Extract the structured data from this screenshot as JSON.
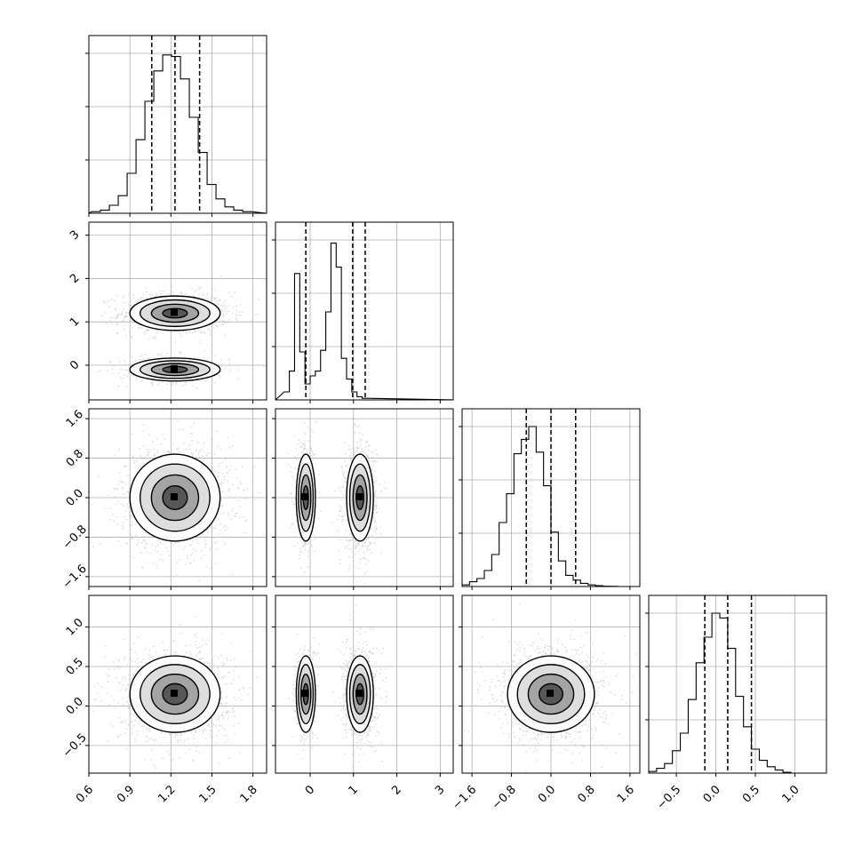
{
  "chart_data": {
    "type": "corner",
    "n_params": 4,
    "grid": true,
    "ticks": [
      [
        "0.6",
        "0.9",
        "1.2",
        "1.5",
        "1.8"
      ],
      [
        "0",
        "1",
        "2",
        "3"
      ],
      [
        "−1.6",
        "−0.8",
        "0.0",
        "0.8",
        "1.6"
      ],
      [
        "−0.5",
        "0.0",
        "0.5",
        "1.0"
      ]
    ],
    "tick_values": [
      [
        0.6,
        0.9,
        1.2,
        1.5,
        1.8
      ],
      [
        0,
        1,
        2,
        3
      ],
      [
        -1.6,
        -0.8,
        0.0,
        0.8,
        1.6
      ],
      [
        -0.5,
        0.0,
        0.5,
        1.0
      ]
    ],
    "ranges": [
      [
        0.6,
        1.9
      ],
      [
        -0.8,
        3.3
      ],
      [
        -1.8,
        1.8
      ],
      [
        -0.85,
        1.4
      ]
    ],
    "quantiles": [
      [
        1.06,
        1.23,
        1.41
      ],
      [
        -0.1,
        0.98,
        1.27
      ],
      [
        -0.5,
        0.0,
        0.5
      ],
      [
        -0.14,
        0.15,
        0.45
      ]
    ],
    "histograms": [
      {
        "bin_start": 0.62,
        "bin_width": 0.065,
        "heights": [
          0.01,
          0.02,
          0.05,
          0.11,
          0.25,
          0.46,
          0.7,
          0.89,
          0.99,
          0.98,
          0.84,
          0.6,
          0.38,
          0.18,
          0.09,
          0.04,
          0.02,
          0.01
        ]
      },
      {
        "bin_start": -0.6,
        "bin_width": 0.12,
        "heights": [
          0.05,
          0.18,
          0.79,
          0.3,
          0.1,
          0.15,
          0.18,
          0.31,
          0.55,
          0.98,
          0.83,
          0.26,
          0.13,
          0.05,
          0.02,
          0.01
        ]
      },
      {
        "bin_start": -1.8,
        "bin_width": 0.15,
        "heights": [
          0.01,
          0.03,
          0.05,
          0.1,
          0.2,
          0.4,
          0.58,
          0.83,
          0.92,
          1.0,
          0.84,
          0.63,
          0.34,
          0.16,
          0.07,
          0.04,
          0.02,
          0.01,
          0.005,
          0.002,
          0.001,
          0.0,
          0.0,
          0.0
        ]
      },
      {
        "bin_start": -0.85,
        "bin_width": 0.1,
        "heights": [
          0.01,
          0.03,
          0.06,
          0.14,
          0.25,
          0.46,
          0.69,
          0.85,
          1.0,
          0.97,
          0.78,
          0.48,
          0.29,
          0.15,
          0.08,
          0.04,
          0.02,
          0.005,
          0.0,
          0.0,
          0.0,
          0.0
        ]
      }
    ],
    "joint": {
      "1_0": {
        "modes": [
          {
            "x": 1.23,
            "y": 1.2,
            "sx": 0.15,
            "sy": 0.18,
            "w": 0.7
          },
          {
            "x": 1.23,
            "y": -0.1,
            "sx": 0.15,
            "sy": 0.12,
            "w": 0.3
          }
        ]
      },
      "2_0": {
        "modes": [
          {
            "x": 1.23,
            "y": 0.0,
            "sx": 0.15,
            "sy": 0.4,
            "w": 1.0
          }
        ]
      },
      "2_1": {
        "modes": [
          {
            "x": -0.1,
            "y": 0.0,
            "sx": 0.1,
            "sy": 0.4,
            "w": 0.3
          },
          {
            "x": 1.15,
            "y": 0.0,
            "sx": 0.14,
            "sy": 0.4,
            "w": 0.7
          }
        ]
      },
      "3_0": {
        "modes": [
          {
            "x": 1.23,
            "y": 0.15,
            "sx": 0.15,
            "sy": 0.22,
            "w": 1.0
          }
        ]
      },
      "3_1": {
        "modes": [
          {
            "x": -0.1,
            "y": 0.15,
            "sx": 0.1,
            "sy": 0.22,
            "w": 0.3
          },
          {
            "x": 1.15,
            "y": 0.15,
            "sx": 0.14,
            "sy": 0.22,
            "w": 0.7
          }
        ]
      },
      "3_2": {
        "modes": [
          {
            "x": 0.0,
            "y": 0.15,
            "sx": 0.4,
            "sy": 0.22,
            "w": 1.0
          }
        ]
      }
    }
  }
}
